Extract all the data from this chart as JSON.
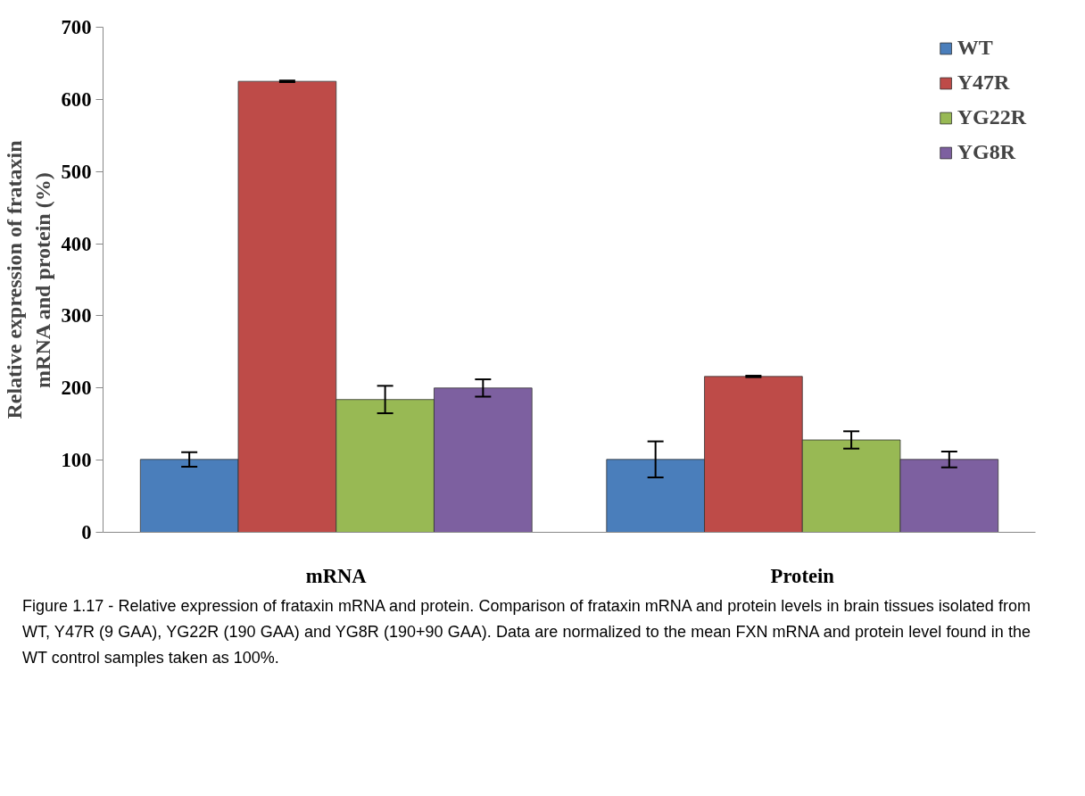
{
  "chart_data": {
    "type": "bar",
    "ylabel": "Relative expression of frataxin\nmRNA and protein (%)",
    "categories": [
      "mRNA",
      "Protein"
    ],
    "series": [
      {
        "name": "WT",
        "color": "#4a7ebb",
        "values": [
          101,
          101
        ],
        "errors": [
          10,
          25
        ]
      },
      {
        "name": "Y47R",
        "color": "#be4b48",
        "values": [
          625,
          216
        ],
        "errors": [
          1,
          1
        ]
      },
      {
        "name": "YG22R",
        "color": "#98b954",
        "values": [
          184,
          128
        ],
        "errors": [
          19,
          12
        ]
      },
      {
        "name": "YG8R",
        "color": "#7d60a0",
        "values": [
          200,
          101
        ],
        "errors": [
          12,
          11
        ]
      }
    ],
    "ylim": [
      0,
      700
    ],
    "yticks": [
      0,
      100,
      200,
      300,
      400,
      500,
      600,
      700
    ],
    "grid": false,
    "legend": "top right",
    "annotations": [
      "Figure 1.17 - Relative expression of frataxin mRNA and protein. Comparison of frataxin mRNA and protein levels in brain tissues isolated from WT, Y47R (9 GAA), YG22R (190 GAA) and YG8R (190+90 GAA). Data are normalized to the mean FXN mRNA and protein level found in the WT control samples taken as 100%."
    ]
  }
}
